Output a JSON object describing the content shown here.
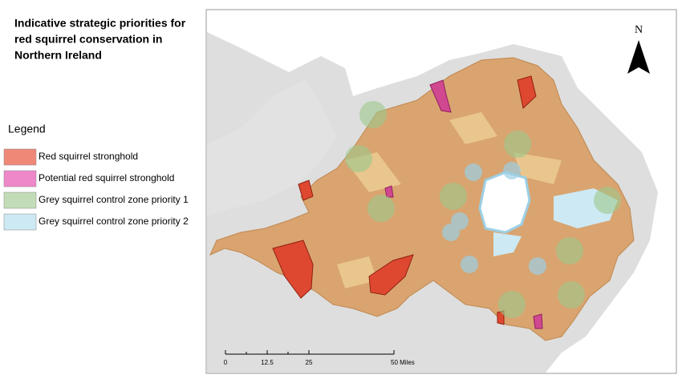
{
  "title": [
    "Indicative strategic priorities for",
    "red squirrel conservation in",
    "Northern Ireland"
  ],
  "legend": {
    "title": "Legend",
    "items": [
      {
        "label": "Red squirrel stronghold",
        "color": "#f08878"
      },
      {
        "label": "Potential red squirrel stronghold",
        "color": "#ee88c8"
      },
      {
        "label": "Grey squirrel control zone priority 1",
        "color": "#c2dcb8"
      },
      {
        "label": "Grey squirrel control zone priority 2",
        "color": "#cde9f4"
      }
    ]
  },
  "north_arrow": "N",
  "scale_bar": [
    "0",
    "12.5",
    "25",
    "50 Miles"
  ]
}
